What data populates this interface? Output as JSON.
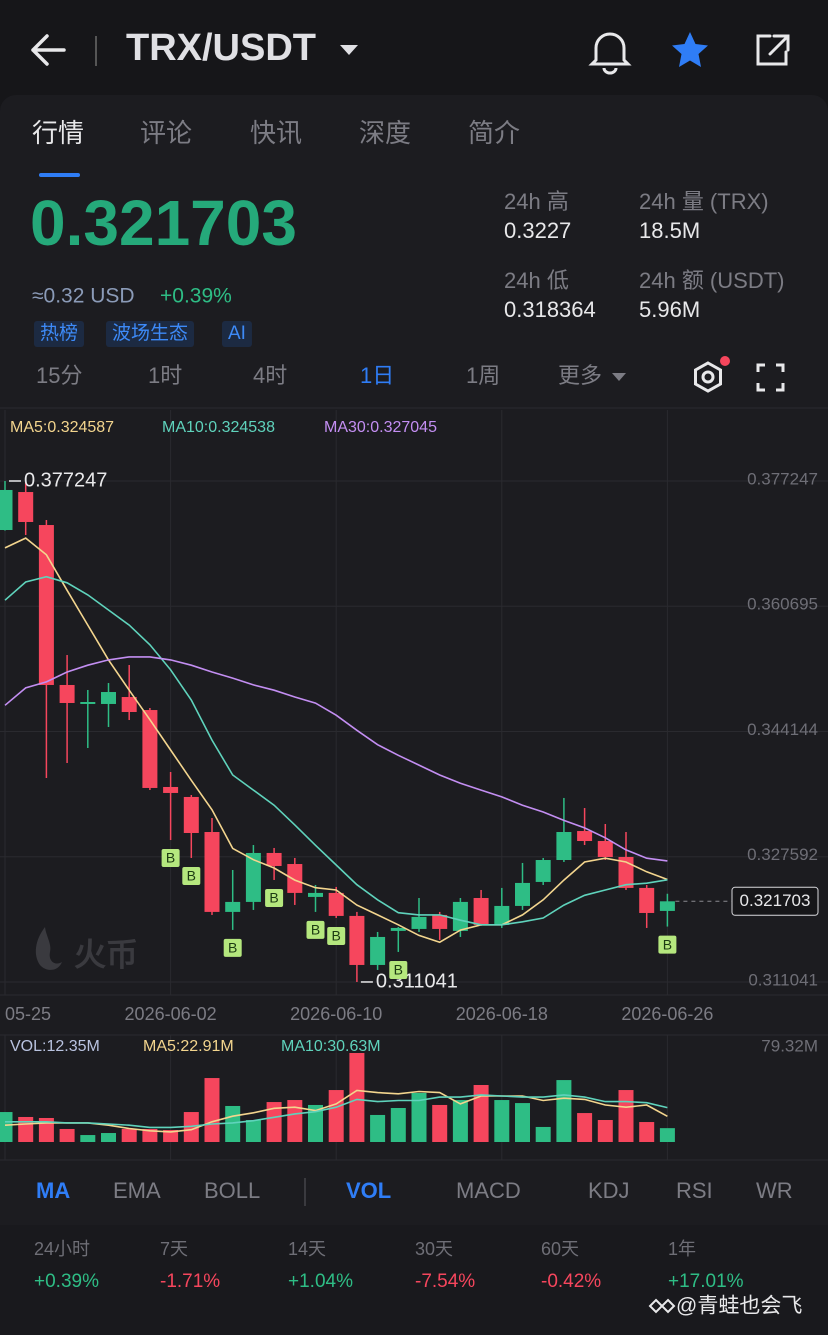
{
  "header": {
    "title": "TRX/USDT"
  },
  "tabs": [
    "行情",
    "评论",
    "快讯",
    "深度",
    "简介"
  ],
  "quote": {
    "price": "0.321703",
    "usd": "≈0.32 USD",
    "change": "+0.39%",
    "tags": [
      "热榜",
      "波场生态",
      "AI"
    ]
  },
  "stats": [
    {
      "label": "24h 高",
      "value": "0.3227"
    },
    {
      "label": "24h 量 (TRX)",
      "value": "18.5M"
    },
    {
      "label": "24h 低",
      "value": "0.318364"
    },
    {
      "label": "24h 额 (USDT)",
      "value": "5.96M"
    }
  ],
  "intervals": [
    "15分",
    "1时",
    "4时",
    "1日",
    "1周",
    "更多"
  ],
  "chart_data": {
    "type": "candlestick",
    "categories": [
      "05-25",
      null,
      null,
      null,
      null,
      null,
      null,
      null,
      "2026-06-02",
      null,
      null,
      null,
      null,
      null,
      null,
      null,
      "2026-06-10",
      null,
      null,
      null,
      null,
      null,
      null,
      null,
      "2026-06-18",
      null,
      null,
      null,
      null,
      null,
      null,
      null,
      "2026-06-26"
    ],
    "open": [
      0.37077,
      0.37579,
      0.37143,
      0.35029,
      0.34778,
      0.34778,
      0.3487,
      0.34698,
      0.33681,
      0.33549,
      0.33086,
      0.3203,
      0.32162,
      0.32809,
      0.32663,
      0.32228,
      0.32281,
      0.31977,
      0.31329,
      0.31779,
      0.31805,
      0.3199,
      0.31779,
      0.32214,
      0.31858,
      0.32109,
      0.32426,
      0.32716,
      0.33099,
      0.32967,
      0.32756,
      0.32347,
      0.32043
    ],
    "high": [
      0.377247,
      0.3771,
      0.37209,
      0.35425,
      0.34963,
      0.35055,
      0.35293,
      0.34725,
      0.33879,
      0.33575,
      0.33271,
      0.32584,
      0.32914,
      0.32875,
      0.32743,
      0.32386,
      0.3236,
      0.3203,
      0.31765,
      0.3183,
      0.32214,
      0.3203,
      0.32214,
      0.3232,
      0.32347,
      0.32677,
      0.32743,
      0.33536,
      0.33403,
      0.33192,
      0.33086,
      0.32386,
      0.3227
    ],
    "low": [
      0.3707,
      0.37011,
      0.338,
      0.33998,
      0.34196,
      0.34474,
      0.34566,
      0.33641,
      0.3298,
      0.32743,
      0.3199,
      0.31792,
      0.32056,
      0.32452,
      0.32122,
      0.3203,
      0.3195,
      0.311041,
      0.31263,
      0.31501,
      0.31765,
      0.3166,
      0.31699,
      0.31845,
      0.31818,
      0.32056,
      0.32386,
      0.3269,
      0.32914,
      0.32716,
      0.3232,
      0.31818,
      0.318364
    ],
    "close": [
      0.37606,
      0.37183,
      0.35029,
      0.34791,
      0.34804,
      0.34936,
      0.34672,
      0.33668,
      0.33602,
      0.33073,
      0.3203,
      0.32162,
      0.32809,
      0.32637,
      0.32281,
      0.32281,
      0.31977,
      0.31329,
      0.31699,
      0.31818,
      0.31964,
      0.31805,
      0.32162,
      0.31858,
      0.32109,
      0.32413,
      0.32716,
      0.33086,
      0.32967,
      0.32756,
      0.32347,
      0.32016,
      0.321703
    ],
    "up_color": "#2ebd85",
    "down_color": "#f6465d",
    "series": [
      {
        "label": "MA5:0.324587",
        "color": "#f3d58e",
        "values": [
          0.3684,
          0.3697,
          0.3675,
          0.3628,
          0.3582,
          0.3536,
          0.3496,
          0.3457,
          0.3417,
          0.3377,
          0.3338,
          0.3287,
          0.3272,
          0.3261,
          0.3245,
          0.3235,
          0.3232,
          0.3212,
          0.3199,
          0.3186,
          0.3172,
          0.3163,
          0.3179,
          0.3186,
          0.3186,
          0.3199,
          0.3219,
          0.3245,
          0.3269,
          0.3274,
          0.3269,
          0.3256,
          0.324587
        ]
      },
      {
        "label": "MA10:0.324538",
        "color": "#5fd3bc",
        "values": [
          0.3615,
          0.3639,
          0.3646,
          0.3638,
          0.3622,
          0.3602,
          0.3582,
          0.3556,
          0.3523,
          0.3483,
          0.343,
          0.3384,
          0.3364,
          0.3344,
          0.3318,
          0.3291,
          0.3265,
          0.3239,
          0.3219,
          0.3202,
          0.3199,
          0.3199,
          0.3192,
          0.3186,
          0.3186,
          0.319,
          0.3195,
          0.3212,
          0.3225,
          0.3232,
          0.3239,
          0.3241,
          0.324538
        ]
      },
      {
        "label": "MA30:0.327045",
        "color": "#c38ef2",
        "values": [
          0.3476,
          0.3499,
          0.3507,
          0.352,
          0.3529,
          0.3536,
          0.354,
          0.354,
          0.3536,
          0.3529,
          0.352,
          0.3512,
          0.3503,
          0.3496,
          0.3487,
          0.3479,
          0.3463,
          0.3443,
          0.3424,
          0.341,
          0.3397,
          0.3384,
          0.3373,
          0.3364,
          0.3355,
          0.3344,
          0.3335,
          0.3324,
          0.3314,
          0.3301,
          0.3285,
          0.3274,
          0.327045
        ]
      }
    ],
    "markers": [
      null,
      null,
      null,
      null,
      null,
      null,
      null,
      null,
      "B",
      "B",
      null,
      "B",
      null,
      "B",
      null,
      "B",
      "B",
      null,
      null,
      "B",
      null,
      null,
      null,
      null,
      null,
      null,
      null,
      null,
      null,
      null,
      null,
      null,
      "B"
    ],
    "ylim": [
      0.30932,
      0.38663
    ],
    "yticks": [
      0.377247,
      0.360695,
      0.344144,
      0.327592,
      0.311041
    ],
    "grid": true,
    "volume": {
      "label": "VOL:12.35M",
      "values": [
        26.7,
        22.3,
        21.4,
        11.6,
        6.2,
        8.0,
        11.6,
        11.6,
        10.7,
        26.7,
        57.0,
        32.1,
        19.6,
        35.6,
        37.4,
        33.0,
        46.3,
        79.32,
        24.1,
        30.3,
        43.7,
        33.0,
        37.4,
        50.8,
        37.4,
        34.7,
        13.4,
        55.2,
        25.8,
        19.6,
        46.3,
        17.8,
        12.35
      ],
      "ylim": [
        0,
        79.32
      ],
      "yticks": [
        {
          "value": 79.32,
          "label": "79.32M"
        }
      ],
      "series": [
        {
          "label": "MA5:22.91M",
          "color": "#f3d58e",
          "values": [
            15,
            16,
            17,
            17,
            17,
            15,
            12,
            10,
            9,
            11,
            18,
            23,
            26,
            30,
            31,
            28,
            34,
            46,
            44,
            43,
            45,
            44,
            34,
            41,
            41,
            41,
            37,
            39,
            38,
            33,
            31,
            33,
            22.91
          ]
        },
        {
          "label": "MA10:30.63M",
          "color": "#5fd3bc",
          "values": [
            18,
            18,
            18,
            17,
            17,
            16,
            15,
            13,
            13,
            14,
            16,
            17,
            19,
            22,
            25,
            27,
            31,
            38,
            36,
            37,
            37,
            40,
            40,
            42,
            41,
            40,
            40,
            42,
            40,
            36,
            36,
            35,
            30.63
          ]
        }
      ]
    }
  },
  "indicators": {
    "main": [
      "MA",
      "EMA",
      "BOLL"
    ],
    "sub": [
      "VOL",
      "MACD",
      "KDJ",
      "RSI",
      "WR"
    ]
  },
  "performance": [
    {
      "period": "24小时",
      "change": "+0.39%"
    },
    {
      "period": "7天",
      "change": "-1.71%"
    },
    {
      "period": "14天",
      "change": "+1.04%"
    },
    {
      "period": "30天",
      "change": "-7.54%"
    },
    {
      "period": "60天",
      "change": "-0.42%"
    },
    {
      "period": "1年",
      "change": "+17.01%"
    }
  ],
  "watermark": "火币",
  "credit": "@青蛙也会飞"
}
